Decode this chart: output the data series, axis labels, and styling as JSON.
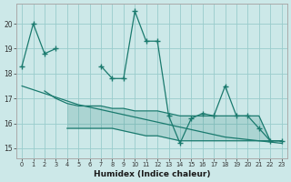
{
  "xlabel": "Humidex (Indice chaleur)",
  "x": [
    0,
    1,
    2,
    3,
    4,
    5,
    6,
    7,
    8,
    9,
    10,
    11,
    12,
    13,
    14,
    15,
    16,
    17,
    18,
    19,
    20,
    21,
    22,
    23
  ],
  "line_main": [
    18.3,
    20.0,
    18.8,
    19.0,
    null,
    null,
    null,
    18.3,
    17.8,
    17.8,
    20.5,
    19.3,
    19.3,
    16.3,
    15.2,
    16.2,
    16.4,
    16.3,
    17.5,
    16.3,
    16.3,
    15.8,
    15.3,
    15.3
  ],
  "line_upper": [
    null,
    null,
    17.3,
    17.0,
    16.8,
    16.7,
    16.7,
    16.7,
    16.6,
    16.6,
    16.5,
    16.5,
    16.5,
    16.4,
    16.3,
    16.3,
    16.3,
    16.3,
    16.3,
    16.3,
    16.3,
    16.3,
    15.3,
    15.3
  ],
  "line_lower": [
    null,
    null,
    null,
    null,
    15.8,
    15.8,
    15.8,
    15.8,
    15.8,
    15.7,
    15.6,
    15.5,
    15.5,
    15.4,
    15.3,
    15.3,
    15.3,
    15.3,
    15.3,
    15.3,
    15.3,
    15.3,
    15.3,
    15.3
  ],
  "line_trend": [
    17.5,
    17.35,
    17.2,
    17.05,
    16.9,
    16.75,
    16.65,
    16.55,
    16.45,
    16.35,
    16.25,
    16.15,
    16.05,
    15.95,
    15.85,
    15.75,
    15.65,
    15.55,
    15.45,
    15.4,
    15.35,
    15.3,
    15.25,
    15.2
  ],
  "bg_color": "#cce8e8",
  "grid_color": "#99cccc",
  "line_color": "#1a7a6e",
  "ylim_min": 14.6,
  "ylim_max": 20.8,
  "yticks": [
    15,
    16,
    17,
    18,
    19,
    20
  ],
  "xticks": [
    0,
    1,
    2,
    3,
    4,
    5,
    6,
    7,
    8,
    9,
    10,
    11,
    12,
    13,
    14,
    15,
    16,
    17,
    18,
    19,
    20,
    21,
    22,
    23
  ]
}
